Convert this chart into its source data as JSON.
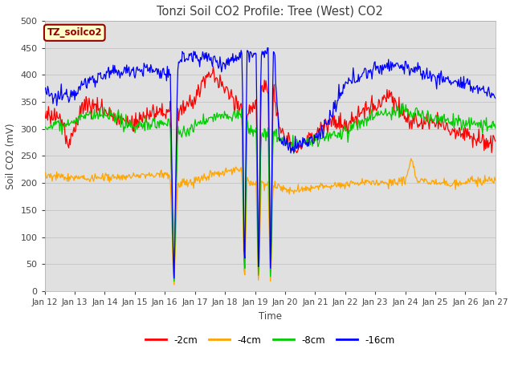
{
  "title": "Tonzi Soil CO2 Profile: Tree (West) CO2",
  "ylabel": "Soil CO2 (mV)",
  "xlabel": "Time",
  "annotation": "TZ_soilco2",
  "ylim": [
    0,
    500
  ],
  "yticks": [
    0,
    50,
    100,
    150,
    200,
    250,
    300,
    350,
    400,
    450,
    500
  ],
  "xtick_labels": [
    "Jan 12",
    "Jan 13",
    "Jan 14",
    "Jan 15",
    "Jan 16",
    "Jan 17",
    "Jan 18",
    "Jan 19",
    "Jan 20",
    "Jan 21",
    "Jan 22",
    "Jan 23",
    "Jan 24",
    "Jan 25",
    "Jan 26",
    "Jan 27"
  ],
  "colors": {
    "red": "#ff0000",
    "orange": "#ffa500",
    "green": "#00cc00",
    "blue": "#0000ff"
  },
  "legend_labels": [
    "-2cm",
    "-4cm",
    "-8cm",
    "-16cm"
  ],
  "background_color": "#e0e0e0",
  "title_color": "#404040",
  "annotation_bg": "#ffffcc",
  "annotation_fg": "#990000",
  "figsize": [
    6.4,
    4.8
  ],
  "dpi": 100
}
